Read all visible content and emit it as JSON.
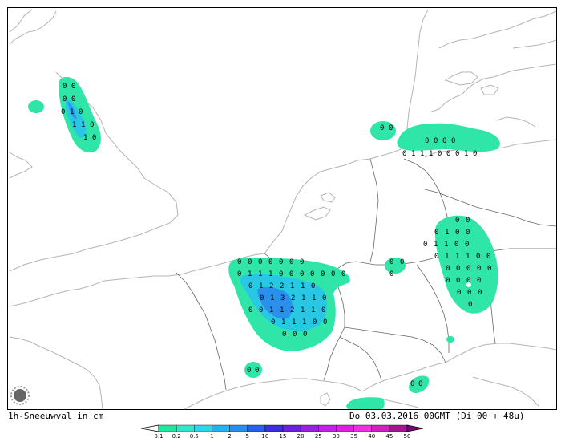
{
  "caption": {
    "title": "1h-Sneeuwval in cm",
    "valid_time": "Do 03.03.2016 00GMT (Di 00 + 48u)"
  },
  "legend": {
    "levels": [
      "0.1",
      "0.2",
      "0.5",
      "1",
      "2",
      "5",
      "10",
      "15",
      "20",
      "25",
      "30",
      "35",
      "40",
      "45",
      "50"
    ],
    "colors": [
      "#22e6a0",
      "#2ee8c8",
      "#28d8e8",
      "#20b4f0",
      "#2a8ef0",
      "#2a5ef0",
      "#3a2ee0",
      "#6a22e0",
      "#9a20e0",
      "#c020e8",
      "#e020e0",
      "#f030e0",
      "#d020c0",
      "#a01890"
    ]
  },
  "colors": {
    "snow_light": "#2fe6a8",
    "snow_medium": "#28c8e4",
    "snow_heavy": "#2a86ec",
    "coast": "#b4b4b4",
    "border": "#000000"
  },
  "icons": {
    "logo": "sun-logo-icon"
  },
  "grid_values": [
    {
      "region": "england",
      "rows": [
        [
          "0",
          "0"
        ],
        [
          "0",
          "0"
        ],
        [
          "0",
          "1",
          "0"
        ],
        [
          "1",
          "1",
          "0"
        ],
        [
          "1",
          "0"
        ]
      ]
    },
    {
      "region": "denmark",
      "rows": [
        [
          "0",
          "0"
        ],
        [
          "0",
          "0",
          "0",
          "0"
        ],
        [
          "0",
          "1",
          "1",
          "1",
          "0",
          "0",
          "0",
          "1",
          "0"
        ]
      ]
    },
    {
      "region": "belgium-france",
      "rows": [
        [
          "0",
          "0",
          "0",
          "0",
          "0",
          "0",
          "0"
        ],
        [
          "0",
          "1",
          "1",
          "1",
          "0",
          "0",
          "0",
          "0",
          "0",
          "0",
          "0"
        ],
        [
          "0",
          "1",
          "2",
          "2",
          "1",
          "1",
          "0"
        ],
        [
          "0",
          "1",
          "3",
          "2",
          "1",
          "1",
          "0"
        ],
        [
          "0",
          "0",
          "1",
          "1",
          "2",
          "1",
          "1",
          "0"
        ],
        [
          "0",
          "1",
          "1",
          "1",
          "0",
          "0"
        ],
        [
          "0",
          "0",
          "0"
        ]
      ]
    },
    {
      "region": "poland",
      "rows": [
        [
          "0",
          "0"
        ],
        [
          "0",
          "1",
          "0",
          "0"
        ],
        [
          "0",
          "1",
          "1",
          "0",
          "0"
        ],
        [
          "0",
          "1",
          "1",
          "1",
          "0",
          "0"
        ],
        [
          "0",
          "0",
          "0",
          "0",
          "0"
        ],
        [
          "0",
          "0",
          "0",
          "0"
        ],
        [
          "0",
          "0",
          "0"
        ],
        [
          "0"
        ]
      ]
    },
    {
      "region": "germany-east",
      "rows": [
        [
          "0",
          "0"
        ],
        [
          "0"
        ]
      ]
    },
    {
      "region": "alps",
      "rows": [
        [
          "0",
          "0"
        ]
      ]
    },
    {
      "region": "italy",
      "rows": [
        [
          "0",
          "0"
        ]
      ]
    }
  ]
}
